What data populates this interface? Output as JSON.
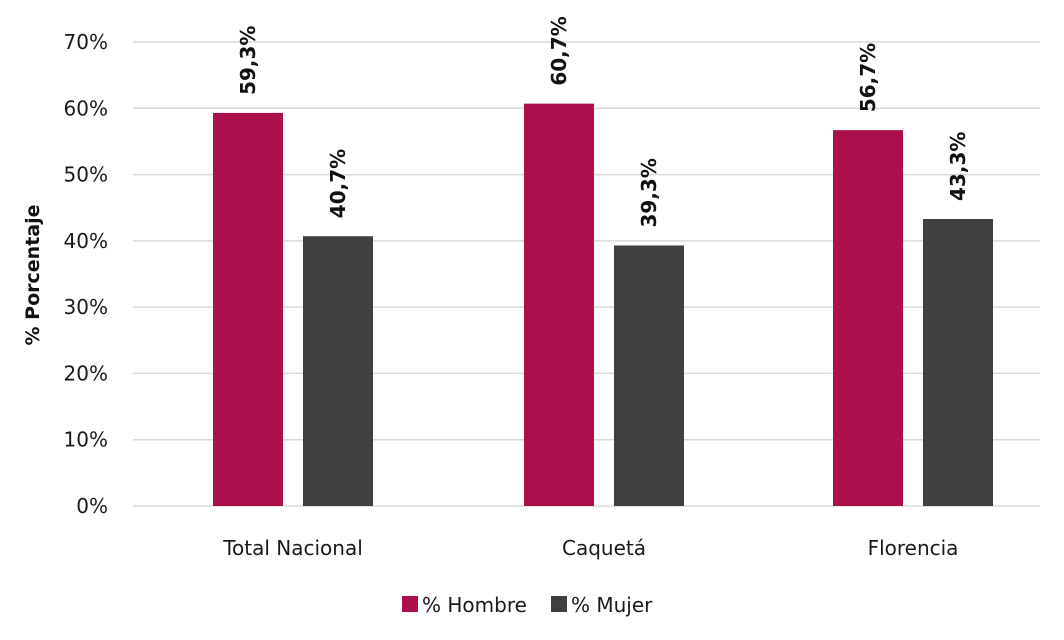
{
  "chart_data": {
    "type": "bar",
    "title": "",
    "xlabel": "",
    "ylabel": "% Porcentaje",
    "categories": [
      "Total Nacional",
      "Caquetá",
      "Florencia"
    ],
    "series": [
      {
        "name": "% Hombre",
        "color": "#ab0f4c",
        "values": [
          59.3,
          60.7,
          56.7
        ],
        "labels": [
          "59,3%",
          "60,7%",
          "56,7%"
        ]
      },
      {
        "name": "% Mujer",
        "color": "#404040",
        "values": [
          40.7,
          39.3,
          43.3
        ],
        "labels": [
          "40,7%",
          "39,3%",
          "43,3%"
        ]
      }
    ],
    "ylim": [
      0,
      70
    ],
    "yticks": [
      0,
      10,
      20,
      30,
      40,
      50,
      60,
      70
    ],
    "ytick_labels": [
      "0%",
      "10%",
      "20%",
      "30%",
      "40%",
      "50%",
      "60%",
      "70%"
    ],
    "grid": true,
    "legend_position": "bottom-center",
    "value_label_orientation": "vertical"
  }
}
